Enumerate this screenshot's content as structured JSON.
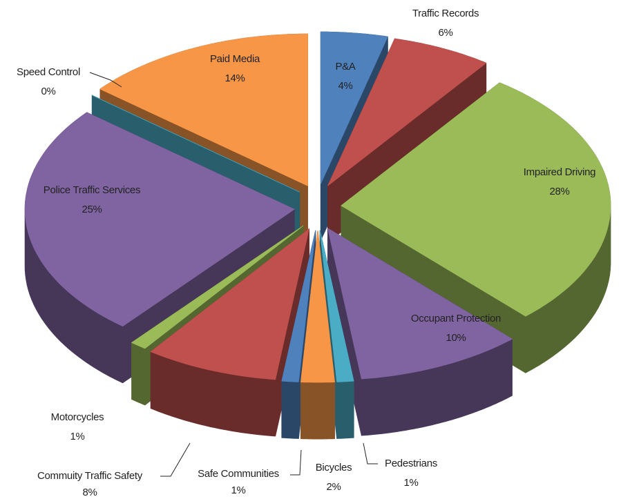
{
  "chart_data": {
    "type": "pie",
    "categories": [
      "P&A",
      "Traffic Records",
      "Impaired Driving",
      "Occupant Protection",
      "Pedestrians",
      "Bicycles",
      "Safe Communities",
      "Commuity Traffic Safety",
      "Motorcycles",
      "Police Traffic Services",
      "Speed Control",
      "Paid Media"
    ],
    "values": [
      4,
      6,
      28,
      10,
      1,
      2,
      1,
      8,
      1,
      25,
      0,
      14
    ],
    "value_labels": [
      "4%",
      "6%",
      "28%",
      "10%",
      "1%",
      "2%",
      "1%",
      "8%",
      "1%",
      "25%",
      "0%",
      "14%"
    ],
    "colors": [
      "#4f81bd",
      "#c0504d",
      "#9bbb59",
      "#8064a2",
      "#4bacc6",
      "#f79646",
      "#4f81bd",
      "#c0504d",
      "#9bbb59",
      "#8064a2",
      "#4bacc6",
      "#f79646"
    ]
  }
}
